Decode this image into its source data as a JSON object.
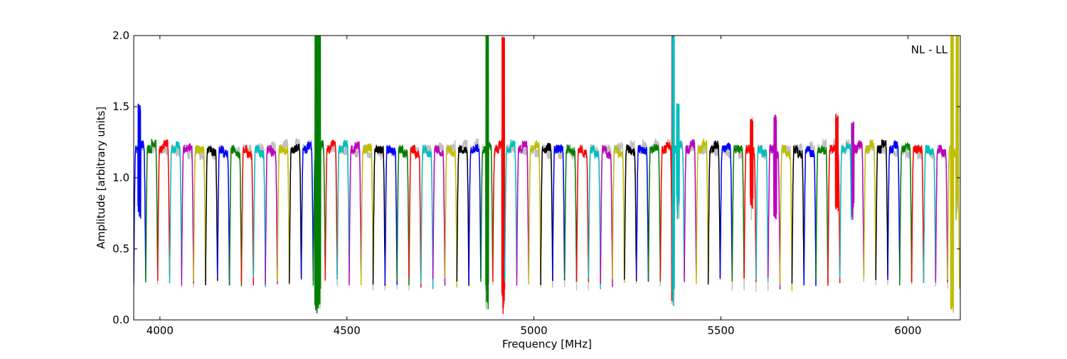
{
  "chart_data": {
    "type": "line",
    "title": "",
    "annotation": "NL - LL",
    "xlabel": "Frequency [MHz]",
    "ylabel": "Amplitude [arbitrary units]",
    "xlim": [
      3930,
      6140
    ],
    "ylim": [
      0.0,
      2.0
    ],
    "xticks": [
      4000,
      4500,
      5000,
      5500,
      6000
    ],
    "xtick_labels": [
      "4000",
      "4500",
      "5000",
      "5500",
      "6000"
    ],
    "yticks": [
      0.0,
      0.5,
      1.0,
      1.5,
      2.0
    ],
    "ytick_labels": [
      "0.0",
      "0.5",
      "1.0",
      "1.5",
      "2.0"
    ],
    "grid": false,
    "background_series_color": "#bfbfbf",
    "color_cycle": [
      "#0000ff",
      "#008000",
      "#ff0000",
      "#00bfbf",
      "#bf00bf",
      "#bfbf00",
      "#000000"
    ],
    "subband_width_mhz": 32,
    "subband_starts_mhz": [
      3930,
      3962,
      3994,
      4026,
      4058,
      4090,
      4122,
      4154,
      4186,
      4218,
      4250,
      4282,
      4314,
      4346,
      4378,
      4410,
      4442,
      4474,
      4506,
      4538,
      4570,
      4602,
      4634,
      4666,
      4698,
      4730,
      4762,
      4794,
      4826,
      4858,
      4890,
      4922,
      4954,
      4986,
      5018,
      5050,
      5082,
      5114,
      5146,
      5178,
      5210,
      5242,
      5274,
      5306,
      5338,
      5370,
      5402,
      5434,
      5466,
      5498,
      5530,
      5562,
      5594,
      5626,
      5658,
      5690,
      5722,
      5754,
      5786,
      5818,
      5850,
      5882,
      5914,
      5946,
      5978,
      6010,
      6042,
      6074,
      6106
    ],
    "typical_band_center_amplitude": 1.2,
    "typical_band_edge_amplitude": 0.27,
    "rfi_spikes": [
      {
        "x": 3945,
        "peak": 1.5
      },
      {
        "x": 4418,
        "peak": 2.0,
        "dip": 0.02
      },
      {
        "x": 4426,
        "peak": 2.0,
        "dip": 0.05
      },
      {
        "x": 4875,
        "peak": 2.0,
        "dip": 0.07
      },
      {
        "x": 4918,
        "peak": 2.0,
        "dip": 0.03
      },
      {
        "x": 5372,
        "peak": 2.0,
        "dip": 0.07
      },
      {
        "x": 5385,
        "peak": 1.5
      },
      {
        "x": 5582,
        "peak": 1.4
      },
      {
        "x": 5645,
        "peak": 1.42
      },
      {
        "x": 5810,
        "peak": 1.43
      },
      {
        "x": 5852,
        "peak": 1.38
      },
      {
        "x": 6118,
        "peak": 2.0,
        "dip": 0.03
      },
      {
        "x": 6132,
        "peak": 2.0
      }
    ]
  }
}
